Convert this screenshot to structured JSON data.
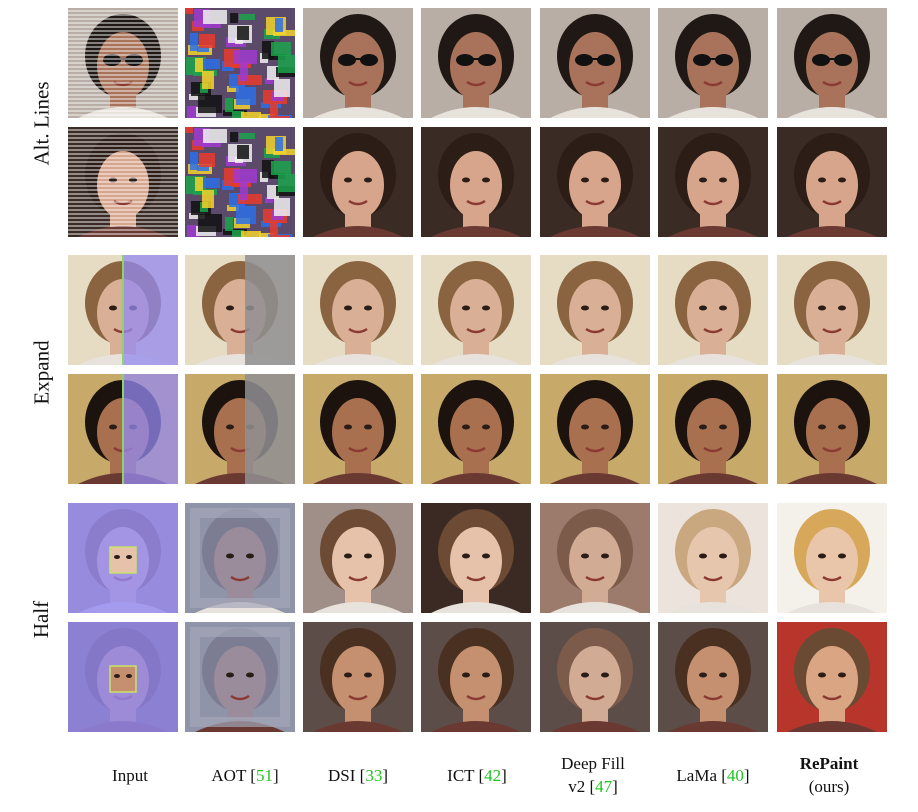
{
  "rows": [
    {
      "label": "Alt. Lines"
    },
    {
      "label": "Expand"
    },
    {
      "label": "Half"
    }
  ],
  "columns": [
    {
      "name": "Input",
      "ref": "",
      "line2": ""
    },
    {
      "name": "AOT [",
      "ref": "51",
      "line2": ""
    },
    {
      "name": "DSI [",
      "ref": "33",
      "line2": ""
    },
    {
      "name": "ICT [",
      "ref": "42",
      "line2": ""
    },
    {
      "name": "Deep Fill",
      "ref": "47",
      "line2": "v2 ["
    },
    {
      "name": "LaMa [",
      "ref": "40",
      "line2": ""
    },
    {
      "name": "RePaint",
      "ref": "",
      "line2": "(ours)"
    }
  ],
  "colors": {
    "reference": "#22c322",
    "mask": "#948af2"
  }
}
